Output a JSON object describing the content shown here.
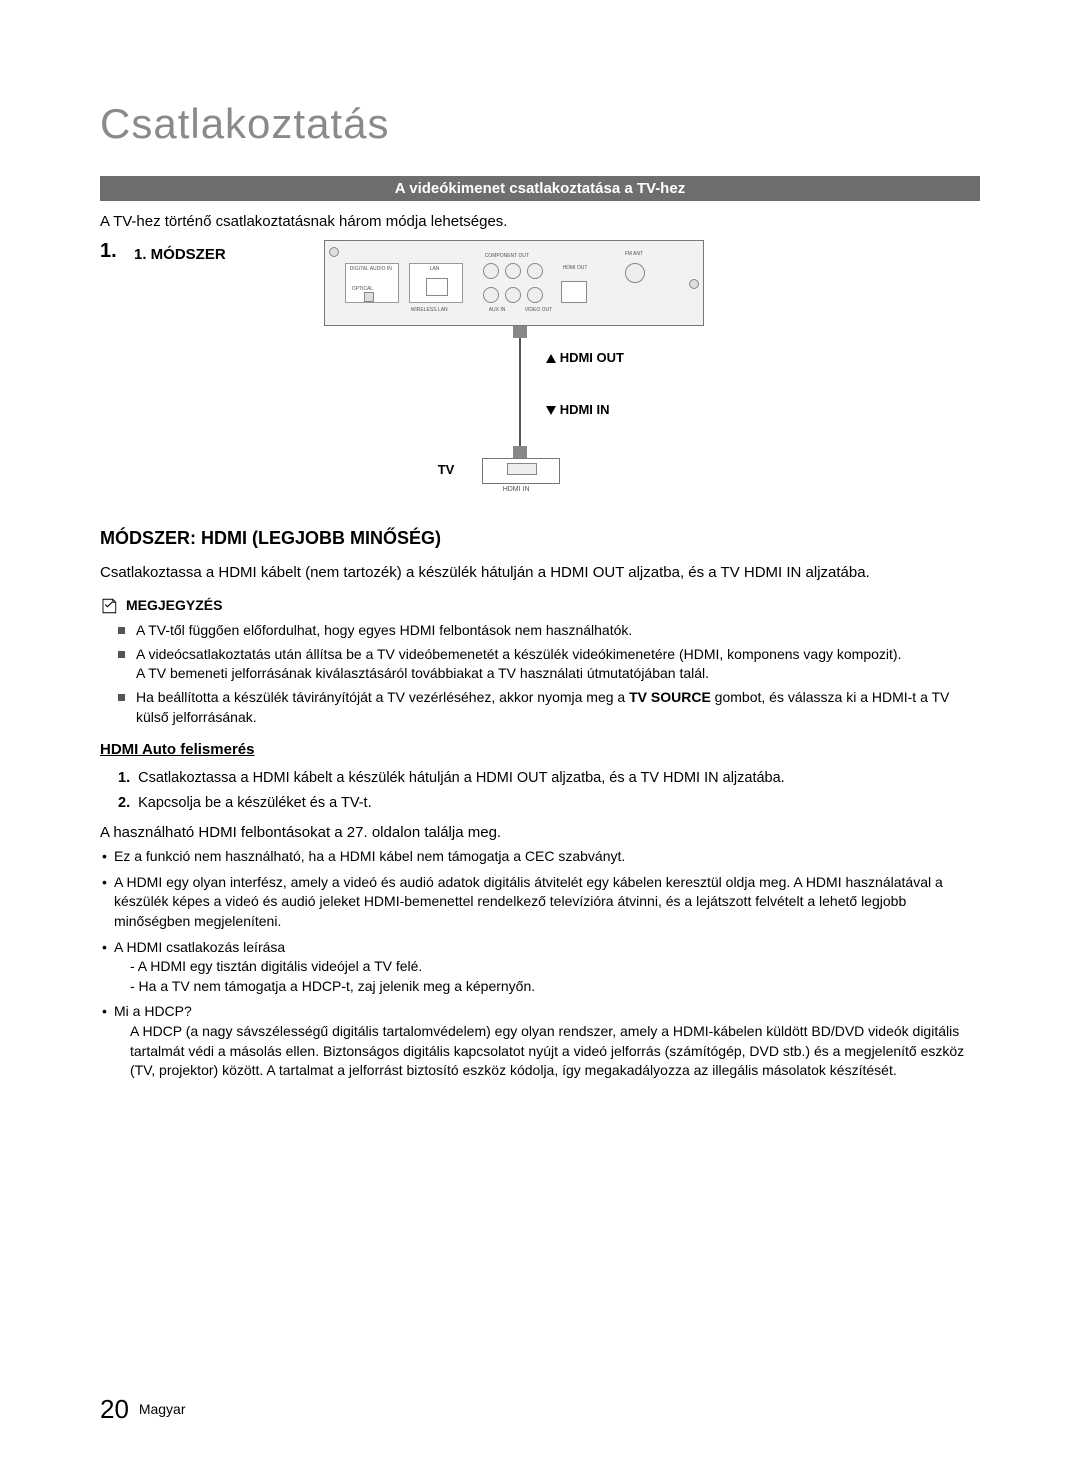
{
  "page_title": "Csatlakoztatás",
  "section_bar": "A videókimenet csatlakoztatása a TV-hez",
  "intro": "A TV-hez történő csatlakoztatásnak három módja lehetséges.",
  "step_number": "1.",
  "method_label": "1. MÓDSZER",
  "diagram": {
    "hdmi_out": "HDMI OUT",
    "hdmi_in": "HDMI IN",
    "tv": "TV",
    "hdmi_in_port": "HDMI IN",
    "panel_labels": {
      "digital_audio_in": "DIGITAL AUDIO IN",
      "optical": "OPTICAL",
      "lan": "LAN",
      "component_out": "COMPONENT OUT",
      "hdmi_out_small": "HDMI OUT",
      "fm_ant": "FM ANT",
      "wireless_lan": "WIRELESS LAN",
      "aux_in": "AUX IN",
      "video_out": "VIDEO OUT"
    }
  },
  "method_heading": "MÓDSZER: HDMI (LEGJOBB MINŐSÉG)",
  "method_body": "Csatlakoztassa a HDMI kábelt (nem tartozék) a készülék hátulján a HDMI OUT aljzatba, és a TV HDMI IN aljzatába.",
  "note_label": "MEGJEGYZÉS",
  "notes": [
    "A TV-től függően előfordulhat, hogy egyes HDMI felbontások nem használhatók.",
    "A videócsatlakoztatás után állítsa be a TV videóbemenetét a készülék videókimenetére (HDMI, komponens vagy kompozit).\nA TV bemeneti jelforrásának kiválasztásáról továbbiakat a TV használati útmutatójában talál.",
    "Ha beállította a készülék távirányítóját a TV vezérléséhez, akkor nyomja meg a TV SOURCE gombot, és válassza ki a HDMI-t a TV külső jelforrásának."
  ],
  "note_bold_token": "TV SOURCE",
  "sub_heading": "HDMI Auto felismerés",
  "ol": [
    "Csatlakoztassa a HDMI kábelt a készülék hátulján a HDMI OUT aljzatba, és a TV HDMI IN aljzatába.",
    "Kapcsolja be a készüléket és a TV-t."
  ],
  "refline": "A használható HDMI felbontásokat a 27. oldalon találja meg.",
  "bullets": [
    {
      "text": "Ez a funkció nem használható, ha a HDMI kábel nem támogatja a CEC szabványt."
    },
    {
      "text": "A HDMI egy olyan interfész, amely a videó és audió adatok digitális átvitelét egy kábelen keresztül oldja meg. A HDMI használatával a készülék képes a videó és audió jeleket HDMI-bemenettel rendelkező televízióra átvinni, és a lejátszott felvételt a lehető legjobb minőségben megjeleníteni."
    },
    {
      "text": "A HDMI csatlakozás leírása",
      "subs": [
        "- A HDMI egy tisztán digitális videójel a TV felé.",
        "- Ha a TV nem támogatja a HDCP-t, zaj jelenik meg a képernyőn."
      ]
    },
    {
      "text": "Mi a HDCP?",
      "subs": [
        "A HDCP (a nagy sávszélességű digitális tartalomvédelem) egy olyan rendszer, amely a HDMI-kábelen küldött BD/DVD videók digitális tartalmát védi a másolás ellen. Biztonságos digitális kapcsolatot nyújt a videó jelforrás (számítógép, DVD stb.) és a megjelenítő eszköz (TV, projektor) között. A tartalmat a jelforrást biztosító eszköz kódolja, így megakadályozza az illegális másolatok készítését."
      ]
    }
  ],
  "footer": {
    "page_num": "20",
    "lang": "Magyar"
  },
  "colors": {
    "page_title": "#8a8a8a",
    "section_bar_bg": "#6e6e6e",
    "section_bar_fg": "#ffffff",
    "text": "#000000",
    "square_bullet": "#555555",
    "panel_bg": "#f2f2f2",
    "panel_border": "#777777"
  }
}
